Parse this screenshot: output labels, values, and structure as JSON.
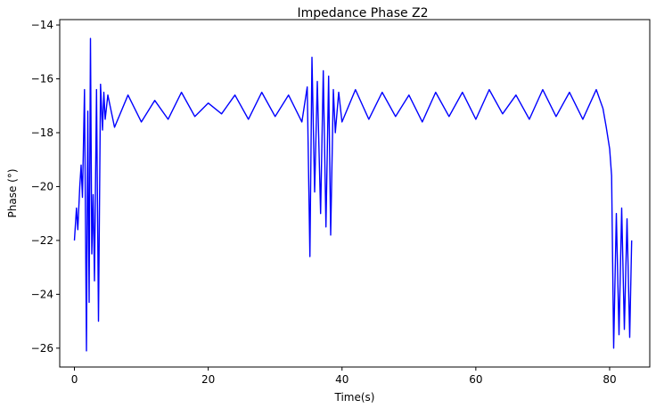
{
  "chart_data": {
    "type": "line",
    "title": "Impedance Phase Z2",
    "xlabel": "Time(s)",
    "ylabel": "Phase (°)",
    "xlim": [
      -2.2,
      86.0
    ],
    "ylim": [
      -26.7,
      -13.8
    ],
    "xticks": [
      0,
      20,
      40,
      60,
      80
    ],
    "yticks": [
      -14,
      -16,
      -18,
      -20,
      -22,
      -24,
      -26
    ],
    "grid": false,
    "series": [
      {
        "color": "#0000ff",
        "x": [
          0.0,
          0.3,
          0.5,
          0.8,
          1.0,
          1.2,
          1.5,
          1.8,
          2.0,
          2.2,
          2.4,
          2.6,
          2.8,
          3.0,
          3.3,
          3.6,
          3.9,
          4.2,
          4.4,
          4.6,
          5.0,
          6.0,
          8.0,
          10.0,
          12.0,
          14.0,
          16.0,
          18.0,
          20.0,
          22.0,
          24.0,
          26.0,
          28.0,
          30.0,
          32.0,
          34.0,
          34.8,
          35.2,
          35.5,
          35.9,
          36.3,
          36.8,
          37.2,
          37.6,
          38.0,
          38.3,
          38.7,
          39.0,
          39.5,
          40.0,
          42.0,
          44.0,
          46.0,
          48.0,
          50.0,
          52.0,
          54.0,
          56.0,
          58.0,
          60.0,
          62.0,
          64.0,
          66.0,
          68.0,
          70.0,
          72.0,
          74.0,
          76.0,
          78.0,
          79.0,
          79.5,
          80.0,
          80.3,
          80.6,
          81.0,
          81.4,
          81.8,
          82.2,
          82.6,
          83.0,
          83.3
        ],
        "y": [
          -22.0,
          -20.8,
          -21.6,
          -20.0,
          -19.2,
          -20.4,
          -16.4,
          -26.1,
          -17.2,
          -24.3,
          -14.5,
          -22.5,
          -20.3,
          -23.5,
          -16.4,
          -25.0,
          -16.2,
          -17.9,
          -16.5,
          -17.5,
          -16.6,
          -17.8,
          -16.6,
          -17.6,
          -16.8,
          -17.5,
          -16.5,
          -17.4,
          -16.9,
          -17.3,
          -16.6,
          -17.5,
          -16.5,
          -17.4,
          -16.6,
          -17.6,
          -16.3,
          -22.6,
          -15.2,
          -20.2,
          -16.1,
          -21.0,
          -15.7,
          -21.5,
          -15.9,
          -21.8,
          -16.4,
          -18.0,
          -16.5,
          -17.6,
          -16.4,
          -17.5,
          -16.5,
          -17.4,
          -16.6,
          -17.6,
          -16.5,
          -17.4,
          -16.5,
          -17.5,
          -16.4,
          -17.3,
          -16.6,
          -17.5,
          -16.4,
          -17.4,
          -16.5,
          -17.5,
          -16.4,
          -17.1,
          -17.8,
          -18.6,
          -19.6,
          -26.0,
          -21.0,
          -25.5,
          -20.8,
          -25.3,
          -21.2,
          -25.6,
          -22.0
        ]
      }
    ]
  }
}
